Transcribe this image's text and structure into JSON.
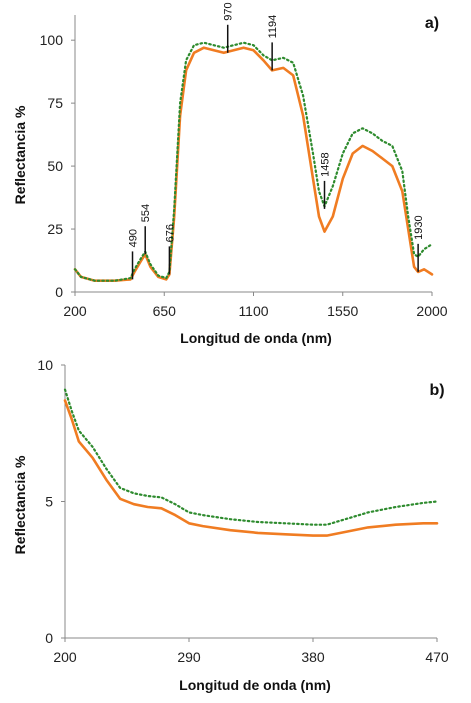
{
  "colors": {
    "series_a": "#f07c22",
    "series_b": "#2e8b2e",
    "axis": "#888888"
  },
  "chart_data": [
    {
      "type": "line",
      "panel_label": "a)",
      "xlabel": "Longitud de onda (nm)",
      "ylabel": "Reflectancia %",
      "xlim": [
        200,
        2000
      ],
      "ylim": [
        0,
        110
      ],
      "xticks": [
        200,
        650,
        1100,
        1550,
        2000
      ],
      "yticks": [
        0,
        25,
        50,
        75,
        100
      ],
      "grid": false,
      "series": [
        {
          "style": "solid",
          "x": [
            200,
            230,
            300,
            400,
            480,
            500,
            530,
            554,
            580,
            620,
            660,
            676,
            700,
            730,
            760,
            800,
            850,
            900,
            950,
            1000,
            1050,
            1100,
            1150,
            1194,
            1250,
            1300,
            1350,
            1400,
            1430,
            1458,
            1500,
            1550,
            1600,
            1650,
            1700,
            1750,
            1800,
            1850,
            1880,
            1910,
            1930,
            1960,
            2000
          ],
          "y": [
            9,
            6,
            4.5,
            4.5,
            5,
            8,
            12,
            15,
            10,
            6,
            5,
            7,
            30,
            70,
            88,
            95,
            97,
            96,
            95,
            96,
            97,
            96,
            92,
            88,
            89,
            86,
            70,
            45,
            30,
            24,
            30,
            45,
            55,
            58,
            56,
            53,
            50,
            40,
            25,
            10,
            8,
            9,
            7
          ]
        },
        {
          "style": "dotted",
          "x": [
            200,
            230,
            300,
            400,
            480,
            500,
            530,
            554,
            580,
            620,
            660,
            676,
            700,
            730,
            760,
            800,
            850,
            900,
            950,
            1000,
            1050,
            1100,
            1150,
            1194,
            1250,
            1300,
            1350,
            1400,
            1430,
            1458,
            1500,
            1550,
            1600,
            1650,
            1700,
            1750,
            1800,
            1850,
            1880,
            1910,
            1930,
            1960,
            2000
          ],
          "y": [
            9,
            6,
            4.5,
            4.5,
            5.5,
            9,
            13,
            16,
            11,
            6.5,
            5.5,
            8,
            33,
            75,
            92,
            98,
            99,
            98,
            97,
            98,
            99,
            98,
            94,
            92,
            93,
            91,
            78,
            55,
            40,
            34,
            42,
            55,
            63,
            65,
            63,
            60,
            58,
            48,
            30,
            15,
            14,
            17,
            19
          ]
        }
      ],
      "annotations": [
        {
          "text": "490",
          "x": 490,
          "y": 5
        },
        {
          "text": "554",
          "x": 554,
          "y": 15
        },
        {
          "text": "676",
          "x": 676,
          "y": 7
        },
        {
          "text": "970",
          "x": 970,
          "y": 95
        },
        {
          "text": "1194",
          "x": 1194,
          "y": 88
        },
        {
          "text": "1458",
          "x": 1458,
          "y": 33
        },
        {
          "text": "1930",
          "x": 1930,
          "y": 8
        }
      ]
    },
    {
      "type": "line",
      "panel_label": "b)",
      "xlabel": "Longitud de onda (nm)",
      "ylabel": "Reflectancia %",
      "xlim": [
        200,
        470
      ],
      "ylim": [
        0,
        10
      ],
      "xticks": [
        200,
        290,
        380,
        470
      ],
      "yticks": [
        0,
        5,
        10
      ],
      "grid": false,
      "series": [
        {
          "style": "solid",
          "x": [
            200,
            205,
            210,
            220,
            230,
            240,
            250,
            260,
            270,
            280,
            290,
            300,
            320,
            340,
            360,
            380,
            390,
            400,
            420,
            440,
            460,
            470
          ],
          "y": [
            8.7,
            8.0,
            7.2,
            6.6,
            5.8,
            5.1,
            4.9,
            4.8,
            4.75,
            4.5,
            4.2,
            4.1,
            3.95,
            3.85,
            3.8,
            3.75,
            3.75,
            3.85,
            4.05,
            4.15,
            4.2,
            4.2
          ]
        },
        {
          "style": "dotted",
          "x": [
            200,
            205,
            210,
            220,
            230,
            240,
            250,
            260,
            270,
            280,
            290,
            300,
            320,
            340,
            360,
            380,
            390,
            400,
            420,
            440,
            460,
            470
          ],
          "y": [
            9.1,
            8.3,
            7.6,
            7.0,
            6.2,
            5.5,
            5.3,
            5.2,
            5.15,
            4.9,
            4.6,
            4.5,
            4.35,
            4.25,
            4.2,
            4.15,
            4.15,
            4.3,
            4.6,
            4.8,
            4.95,
            5.0
          ]
        }
      ]
    }
  ]
}
